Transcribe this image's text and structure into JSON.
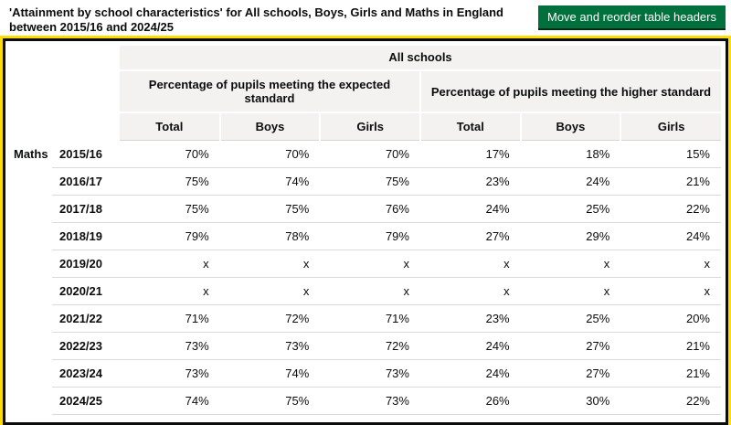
{
  "header": {
    "title": "'Attainment by school characteristics' for All schools, Boys, Girls and Maths in England between 2015/16 and 2024/25",
    "button_label": "Move and reorder table headers"
  },
  "colors": {
    "button_green": "#00703c",
    "button_shadow": "#002d18",
    "focus_yellow": "#ffdd00",
    "border_black": "#0b0c0c",
    "header_grey": "#f3f2f1",
    "row_border": "#dbdad9",
    "text": "#0b0c0c"
  },
  "table": {
    "top_header": "All schools",
    "group_headers": [
      "Percentage of pupils meeting the expected standard",
      "Percentage of pupils meeting the higher standard"
    ],
    "column_headers": [
      "Total",
      "Boys",
      "Girls",
      "Total",
      "Boys",
      "Girls"
    ],
    "row_group_label": "Maths",
    "rows": [
      {
        "year": "2015/16",
        "values": [
          "70%",
          "70%",
          "70%",
          "17%",
          "18%",
          "15%"
        ]
      },
      {
        "year": "2016/17",
        "values": [
          "75%",
          "74%",
          "75%",
          "23%",
          "24%",
          "21%"
        ]
      },
      {
        "year": "2017/18",
        "values": [
          "75%",
          "75%",
          "76%",
          "24%",
          "25%",
          "22%"
        ]
      },
      {
        "year": "2018/19",
        "values": [
          "79%",
          "78%",
          "79%",
          "27%",
          "29%",
          "24%"
        ]
      },
      {
        "year": "2019/20",
        "values": [
          "x",
          "x",
          "x",
          "x",
          "x",
          "x"
        ]
      },
      {
        "year": "2020/21",
        "values": [
          "x",
          "x",
          "x",
          "x",
          "x",
          "x"
        ]
      },
      {
        "year": "2021/22",
        "values": [
          "71%",
          "72%",
          "71%",
          "23%",
          "25%",
          "20%"
        ]
      },
      {
        "year": "2022/23",
        "values": [
          "73%",
          "73%",
          "72%",
          "24%",
          "27%",
          "21%"
        ]
      },
      {
        "year": "2023/24",
        "values": [
          "73%",
          "74%",
          "73%",
          "24%",
          "27%",
          "21%"
        ]
      },
      {
        "year": "2024/25",
        "values": [
          "74%",
          "75%",
          "73%",
          "26%",
          "30%",
          "22%"
        ]
      }
    ]
  }
}
